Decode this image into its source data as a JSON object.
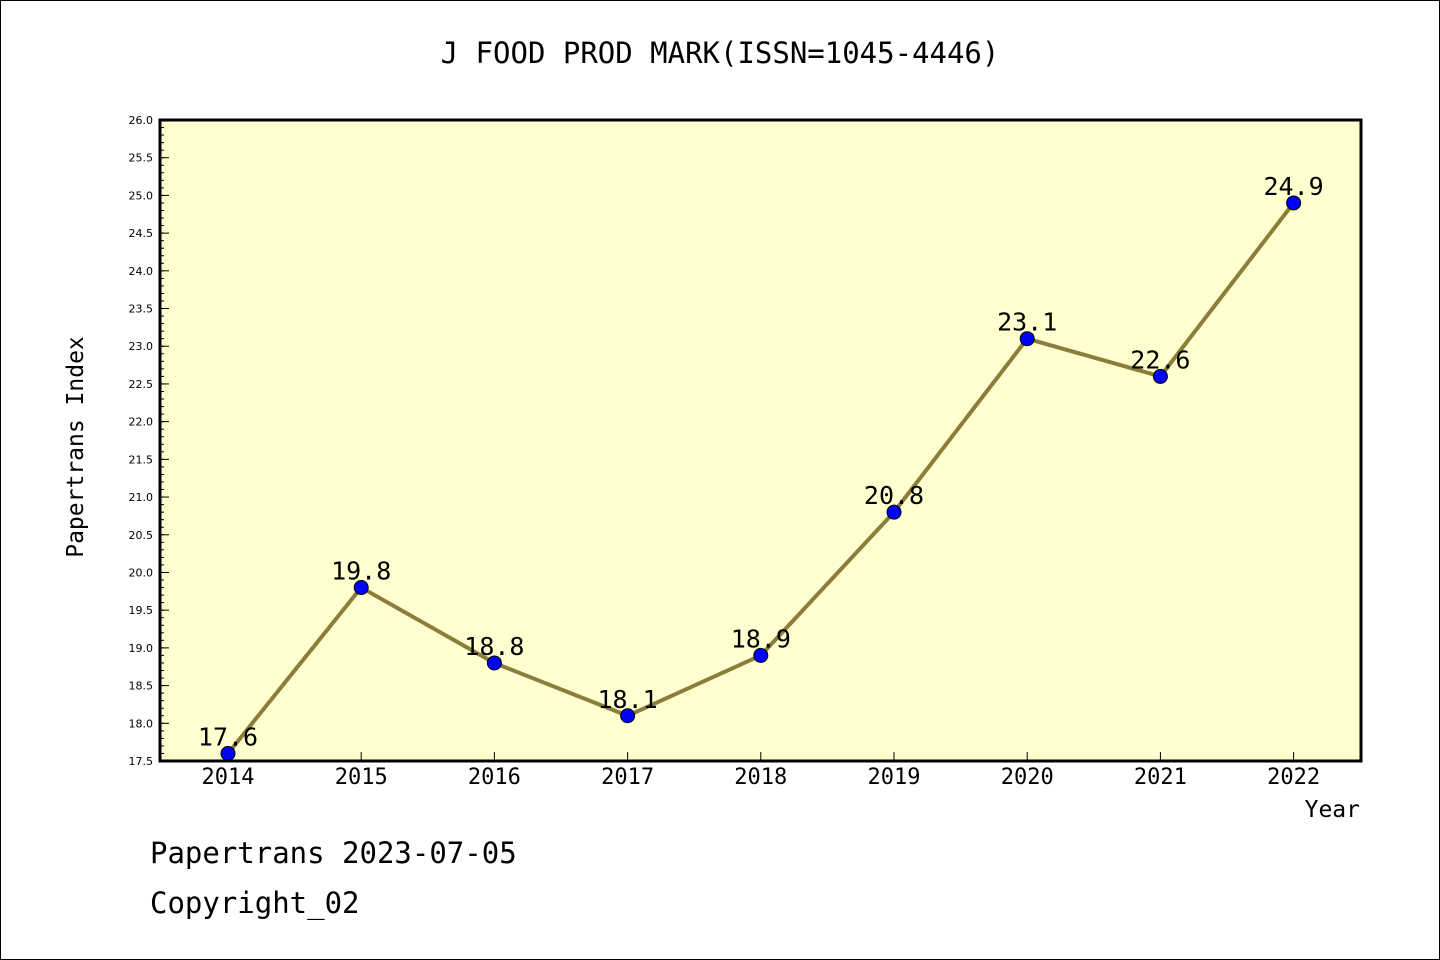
{
  "chart_data": {
    "type": "line",
    "title": "J FOOD PROD MARK(ISSN=1045-4446)",
    "xlabel": "Year",
    "ylabel": "Papertrans Index",
    "x": [
      "2014",
      "2015",
      "2016",
      "2017",
      "2018",
      "2019",
      "2020",
      "2021",
      "2022"
    ],
    "series": [
      {
        "values": [
          17.6,
          19.8,
          18.8,
          18.1,
          18.9,
          20.8,
          23.1,
          22.6,
          24.9
        ]
      }
    ],
    "data_labels": [
      "17.6",
      "19.8",
      "18.8",
      "18.1",
      "18.9",
      "20.8",
      "23.1",
      "22.6",
      "24.9"
    ],
    "ylim": [
      17.5,
      26.0
    ],
    "yticks": [
      "17.5",
      "18.0",
      "18.5",
      "19.0",
      "19.5",
      "20.0",
      "20.5",
      "21.0",
      "21.5",
      "22.0",
      "22.5",
      "23.0",
      "23.5",
      "24.0",
      "24.5",
      "25.0",
      "25.5",
      "26.0"
    ],
    "grid": false,
    "colors": {
      "plot_background": "#ffffd0",
      "line": "#8b7d3a",
      "marker": "#0000ff"
    }
  },
  "footer": {
    "line1": "Papertrans 2023-07-05",
    "line2": "Copyright_02"
  }
}
